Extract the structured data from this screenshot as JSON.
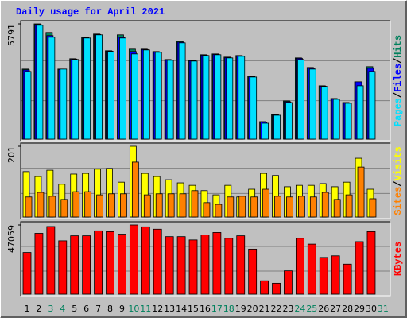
{
  "categories": [
    "1",
    "2",
    "3",
    "4",
    "5",
    "6",
    "7",
    "8",
    "9",
    "10",
    "11",
    "12",
    "13",
    "14",
    "15",
    "16",
    "17",
    "18",
    "19",
    "20",
    "21",
    "22",
    "23",
    "24",
    "25",
    "26",
    "27",
    "28",
    "29",
    "30",
    "31"
  ],
  "category_colors": [
    "#000000",
    "#000000",
    "#00805c",
    "#00805c",
    "#000000",
    "#000000",
    "#000000",
    "#000000",
    "#000000",
    "#00805c",
    "#00805c",
    "#000000",
    "#000000",
    "#000000",
    "#000000",
    "#000000",
    "#00805c",
    "#00805c",
    "#000000",
    "#000000",
    "#000000",
    "#000000",
    "#000000",
    "#00805c",
    "#00805c",
    "#000000",
    "#000000",
    "#000000",
    "#000000",
    "#000000",
    "#00805c"
  ],
  "legend_separator": "/",
  "chart_data": [
    {
      "type": "bar",
      "title": "Daily usage for April 2021",
      "ylim": [
        0,
        5791
      ],
      "yticks": [
        5791
      ],
      "series": [
        {
          "name": "Hits",
          "color": "#00805c",
          "values": [
            3520,
            5791,
            5360,
            3520,
            4040,
            5120,
            5280,
            4440,
            5240,
            4520,
            4520,
            4400,
            4000,
            4920,
            3960,
            4240,
            4280,
            4120,
            4200,
            3160,
            880,
            1240,
            1920,
            4080,
            3600,
            2680,
            2040,
            1840,
            2880,
            3640,
            null
          ]
        },
        {
          "name": "Files",
          "color": "#0000ff",
          "values": [
            3480,
            5760,
            5200,
            3500,
            4020,
            5100,
            5260,
            4420,
            5120,
            4400,
            4500,
            4380,
            3980,
            4880,
            3940,
            4220,
            4260,
            4100,
            4180,
            3140,
            860,
            1220,
            1880,
            4060,
            3560,
            2660,
            2020,
            1820,
            2880,
            3560,
            null
          ]
        },
        {
          "name": "Pages",
          "color": "#00e0ff",
          "values": [
            3400,
            5720,
            5120,
            3520,
            4000,
            5080,
            5240,
            4400,
            5080,
            4280,
            4480,
            4360,
            3960,
            4840,
            3920,
            4200,
            4240,
            4080,
            4160,
            3120,
            800,
            1200,
            1840,
            4000,
            3520,
            2640,
            2000,
            1800,
            2680,
            3400,
            null
          ]
        }
      ]
    },
    {
      "type": "bar",
      "ylim": [
        0,
        201
      ],
      "yticks": [
        201
      ],
      "series": [
        {
          "name": "Visits",
          "color": "#ffff00",
          "values": [
            129,
            115,
            133,
            93,
            122,
            124,
            136,
            138,
            99,
            201,
            124,
            115,
            106,
            97,
            90,
            75,
            63,
            90,
            57,
            79,
            124,
            118,
            86,
            90,
            90,
            95,
            86,
            99,
            167,
            79,
            null
          ]
        },
        {
          "name": "Sites",
          "color": "#ff8000",
          "values": [
            57,
            70,
            59,
            50,
            72,
            72,
            63,
            66,
            66,
            156,
            63,
            66,
            66,
            66,
            75,
            41,
            36,
            57,
            59,
            57,
            79,
            59,
            57,
            59,
            57,
            70,
            50,
            63,
            142,
            52,
            null
          ]
        }
      ]
    },
    {
      "type": "bar",
      "ylim": [
        0,
        47059
      ],
      "yticks": [
        47059
      ],
      "series": [
        {
          "name": "KBytes",
          "color": "#ff0000",
          "values": [
            28350,
            41391,
            46000,
            36288,
            39690,
            39690,
            43092,
            42525,
            40824,
            47059,
            45800,
            44200,
            39123,
            39123,
            36855,
            40257,
            41958,
            37989,
            39690,
            30618,
            9072,
            7371,
            15876,
            37989,
            34020,
            24948,
            26082,
            20412,
            35721,
            42525,
            null
          ]
        }
      ]
    }
  ]
}
